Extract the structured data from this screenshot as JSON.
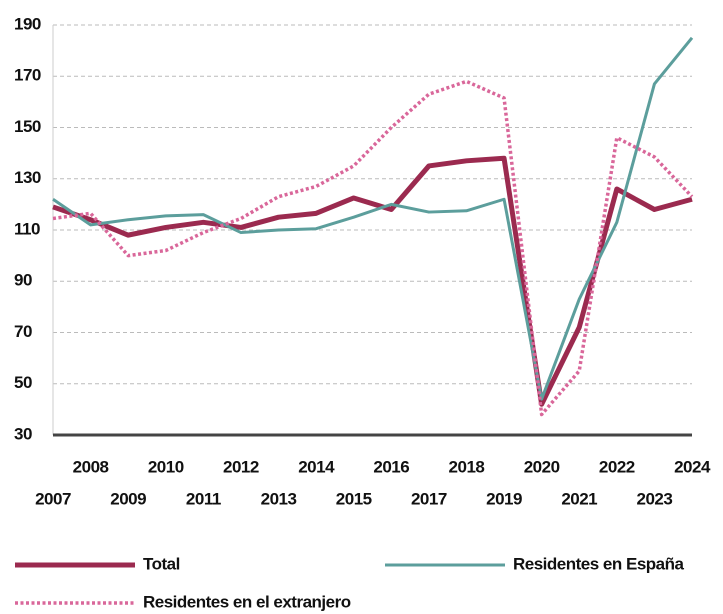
{
  "chart_data": {
    "type": "line",
    "categories": [
      "2007",
      "2008",
      "2009",
      "2010",
      "2011",
      "2012",
      "2013",
      "2014",
      "2015",
      "2016",
      "2017",
      "2018",
      "2019",
      "2020",
      "2021",
      "2022",
      "2023",
      "2024"
    ],
    "series": [
      {
        "name": "Total",
        "color": "#9b2a4f",
        "style": "solid",
        "width": 5,
        "values": [
          119,
          114,
          108,
          111,
          113,
          111,
          115,
          116.5,
          122.5,
          118,
          135,
          137,
          138,
          42,
          72,
          126,
          118,
          122
        ]
      },
      {
        "name": "Residentes en  España",
        "color": "#5c9e9c",
        "style": "solid",
        "width": 3,
        "values": [
          122,
          112,
          114,
          115.5,
          116,
          109,
          110,
          110.5,
          115,
          120,
          117,
          117.5,
          122,
          44,
          83,
          113,
          167,
          185
        ]
      },
      {
        "name": "Residentes en el extranjero",
        "color": "#d9679a",
        "style": "dotted",
        "width": 3.5,
        "values": [
          114.5,
          116.5,
          100,
          102,
          109,
          114.5,
          123,
          127,
          135,
          150,
          163,
          168,
          161.5,
          38,
          55,
          146,
          138.5,
          123
        ]
      }
    ],
    "ylim": [
      30,
      190
    ],
    "yticks": [
      30,
      50,
      70,
      90,
      110,
      130,
      150,
      170,
      190
    ],
    "grid": true
  }
}
